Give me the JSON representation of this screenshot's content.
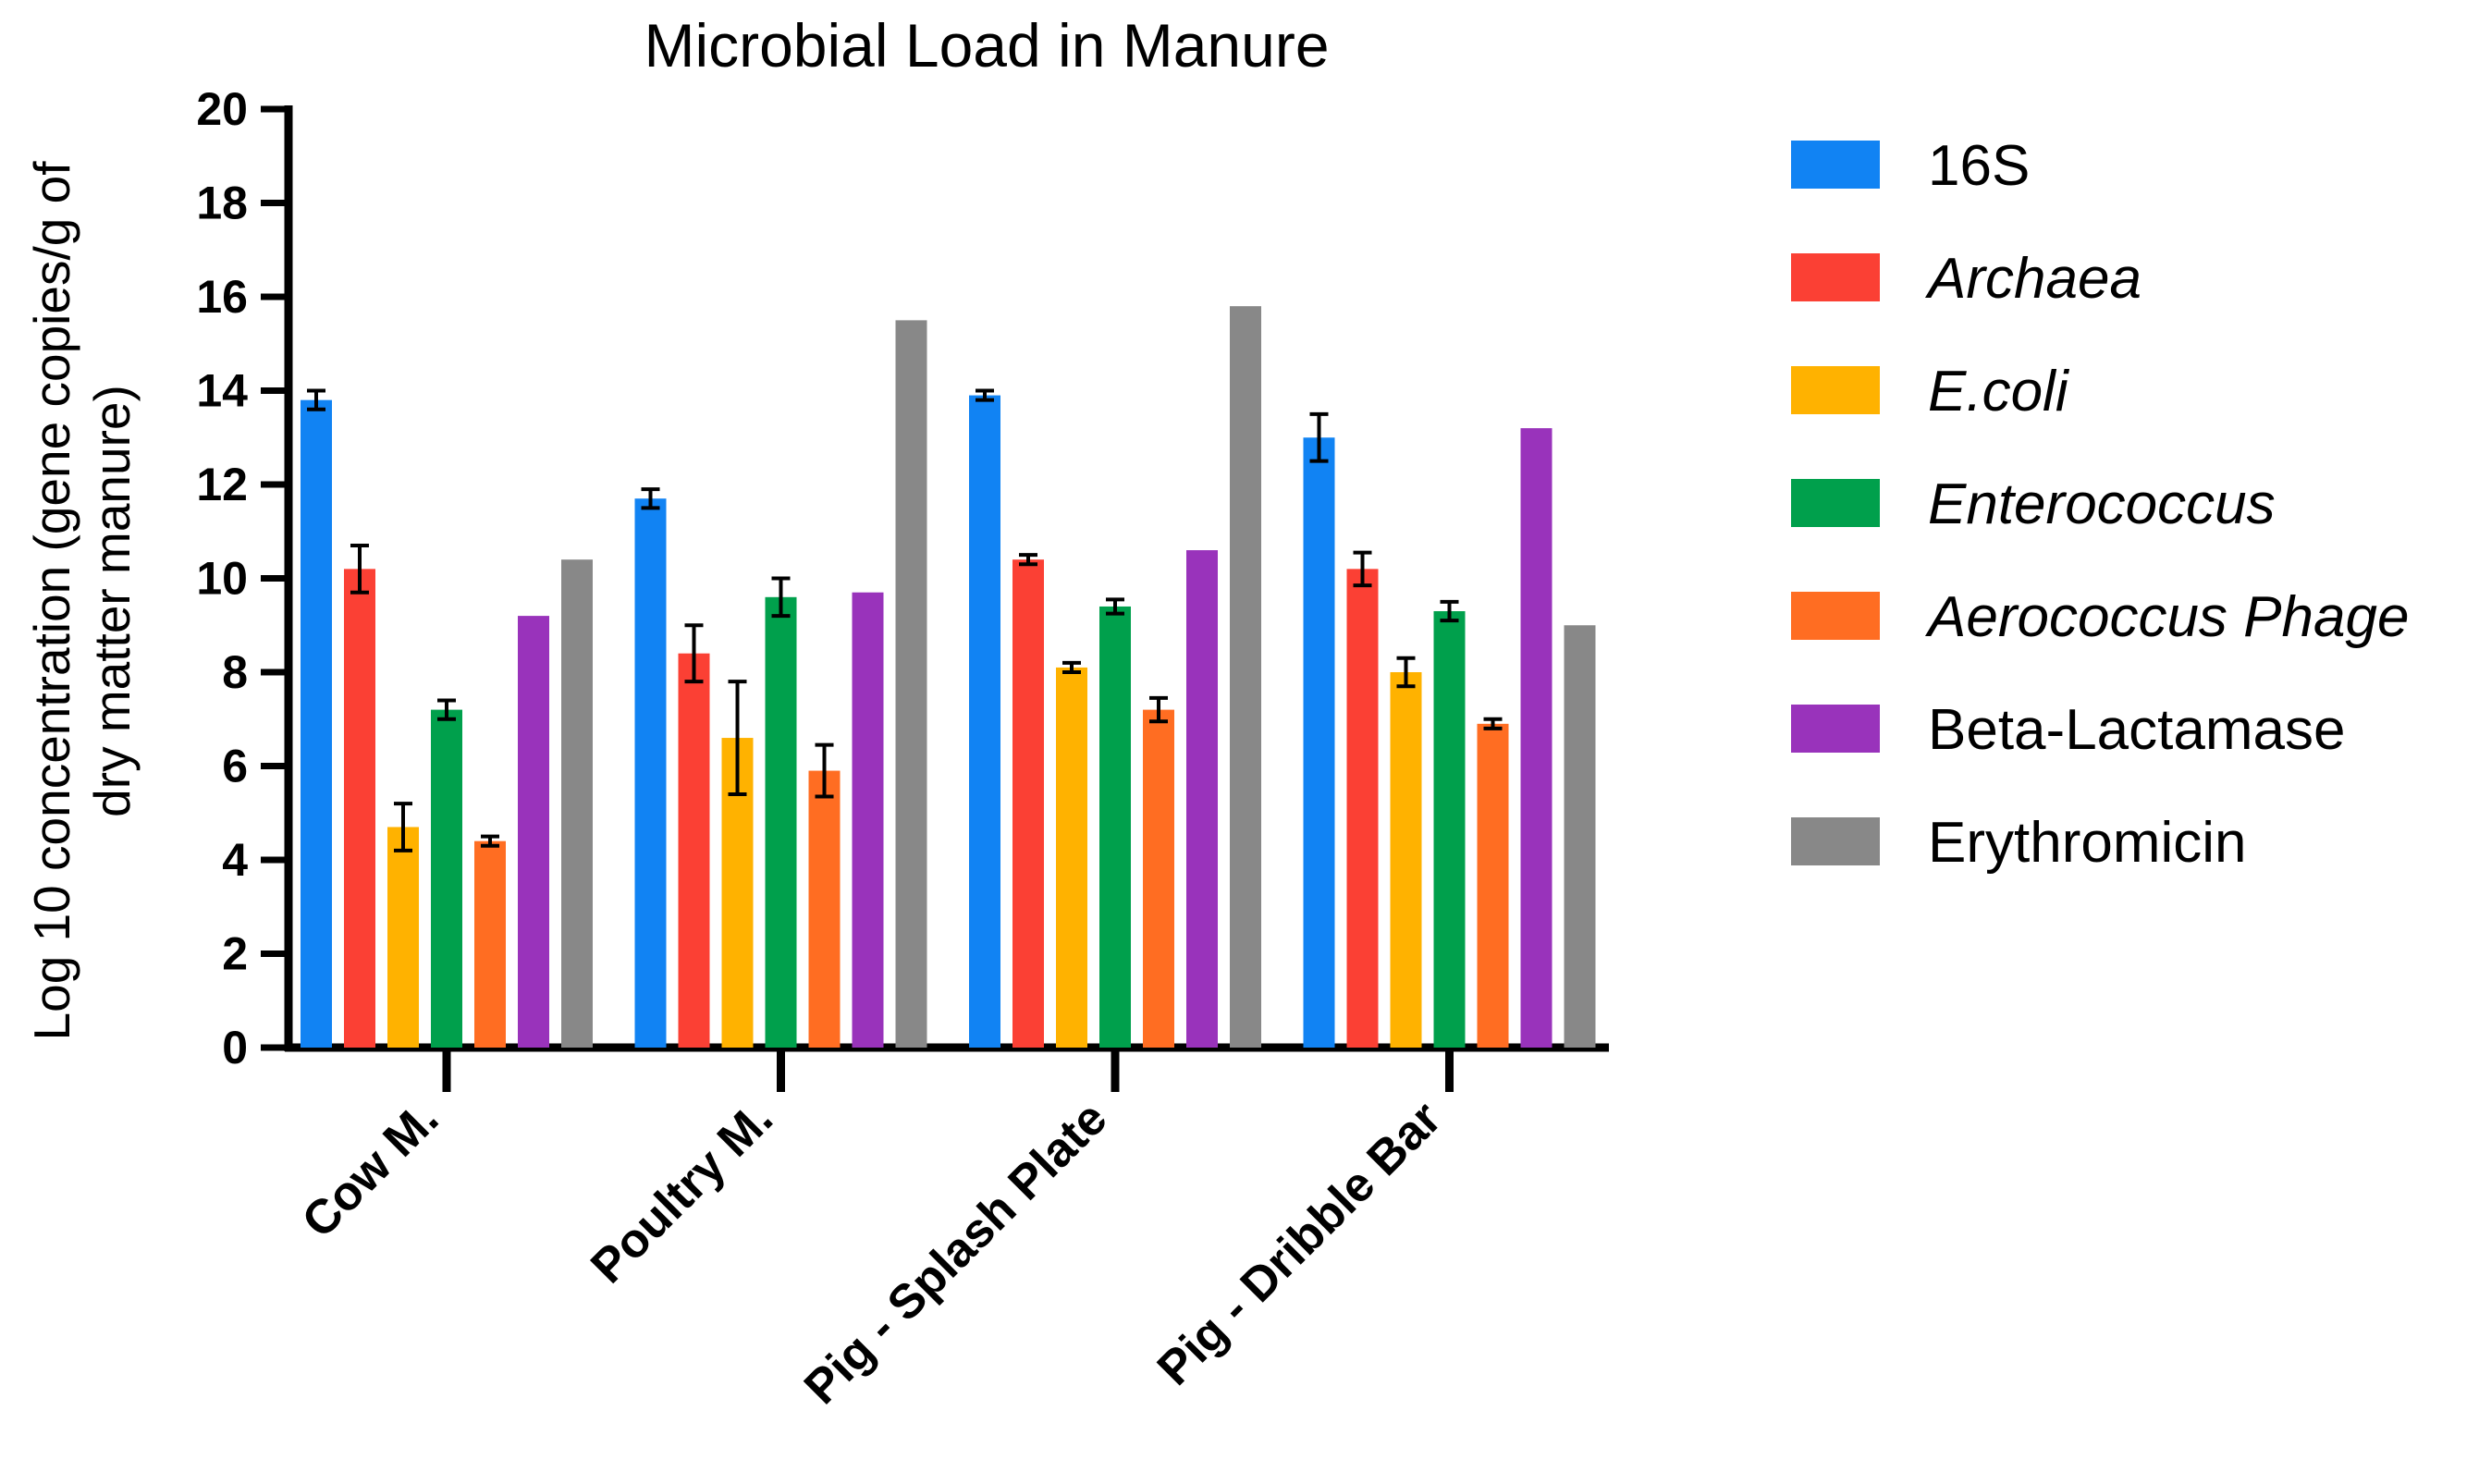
{
  "chart_data": {
    "type": "bar",
    "title": "Microbial Load in Manure",
    "xlabel": "",
    "ylabel_lines": [
      "Log 10 concentration (gene copies/g of",
      "dry matter manure)"
    ],
    "ylim": [
      0,
      20
    ],
    "yticks": [
      "0",
      "2",
      "4",
      "6",
      "8",
      "10",
      "12",
      "14",
      "16",
      "18",
      "20"
    ],
    "categories": [
      "Cow M.",
      "Poultry M.",
      "Pig - Splash Plate",
      "Pig - Dribble Bar"
    ],
    "series": [
      {
        "name": "16S",
        "italic": false,
        "color": "#1183f3",
        "values": [
          13.8,
          11.7,
          13.9,
          13.0
        ],
        "errors": [
          0.2,
          0.2,
          0.1,
          0.5
        ]
      },
      {
        "name": "Archaea",
        "italic": true,
        "color": "#fb4034",
        "values": [
          10.2,
          8.4,
          10.4,
          10.2
        ],
        "errors": [
          0.5,
          0.6,
          0.1,
          0.35
        ]
      },
      {
        "name": "E.coli",
        "italic": true,
        "color": "#ffb200",
        "values": [
          4.7,
          6.6,
          8.1,
          8.0
        ],
        "errors": [
          0.5,
          1.2,
          0.1,
          0.3
        ]
      },
      {
        "name": "Enterococcus",
        "italic": true,
        "color": "#00a04c",
        "values": [
          7.2,
          9.6,
          9.4,
          9.3
        ],
        "errors": [
          0.2,
          0.4,
          0.15,
          0.2
        ]
      },
      {
        "name": "Aerococcus Phage",
        "italic": true,
        "color": "#ff6d22",
        "values": [
          4.4,
          5.9,
          7.2,
          6.9
        ],
        "errors": [
          0.1,
          0.55,
          0.25,
          0.1
        ]
      },
      {
        "name": "Beta-Lactamase",
        "italic": false,
        "color": "#9933bb",
        "values": [
          9.2,
          9.7,
          10.6,
          13.2
        ],
        "errors": [
          0,
          0,
          0,
          0
        ]
      },
      {
        "name": "Erythromicin",
        "italic": false,
        "color": "#888888",
        "values": [
          10.4,
          15.5,
          15.8,
          9.0
        ],
        "errors": [
          0,
          0,
          0,
          0
        ]
      }
    ],
    "legend_position": "right",
    "grid": false
  }
}
